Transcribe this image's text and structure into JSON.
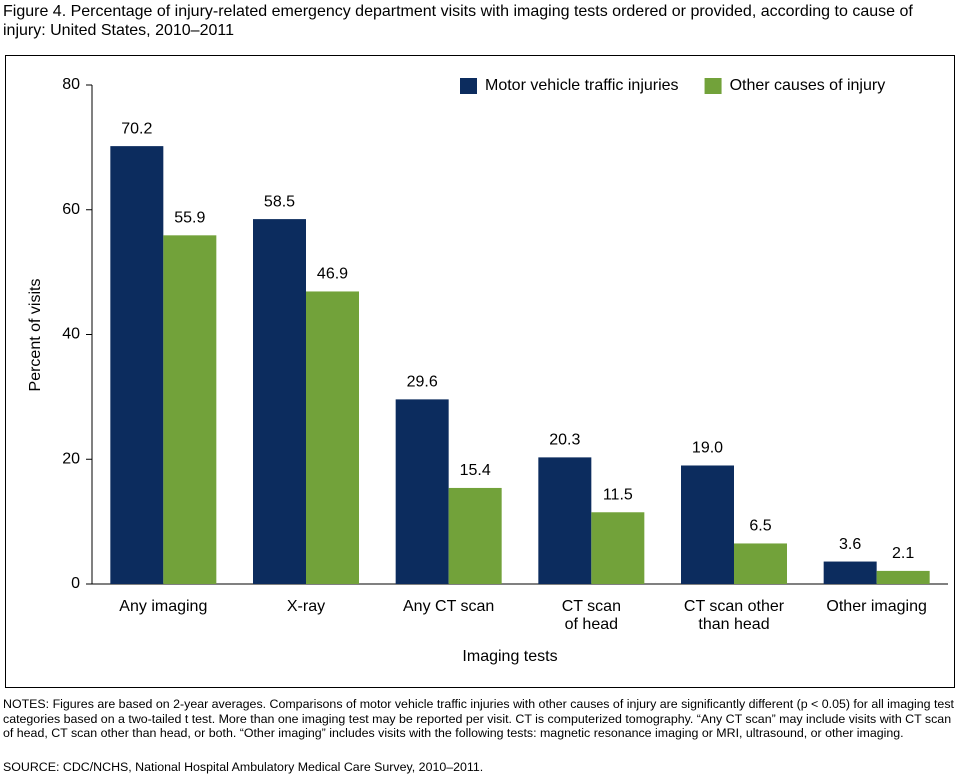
{
  "chart_data": {
    "type": "bar",
    "title": "Figure 4. Percentage of injury-related emergency department visits with imaging tests ordered or provided, according to cause of injury: United States, 2010–2011",
    "categories": [
      "Any imaging",
      "X-ray",
      "Any CT scan",
      "CT scan\nof head",
      "CT scan other\nthan head",
      "Other imaging"
    ],
    "series": [
      {
        "name": "Motor vehicle traffic injuries",
        "color": "#0c2c5e",
        "values": [
          70.2,
          58.5,
          29.6,
          20.3,
          19.0,
          3.6
        ],
        "value_labels": [
          "70.2",
          "58.5",
          "29.6",
          "20.3",
          "19.0",
          "3.6"
        ]
      },
      {
        "name": "Other causes of injury",
        "color": "#72a23a",
        "values": [
          55.9,
          46.9,
          15.4,
          11.5,
          6.5,
          2.1
        ],
        "value_labels": [
          "55.9",
          "46.9",
          "15.4",
          "11.5",
          "6.5",
          "2.1"
        ]
      }
    ],
    "ylim": [
      0,
      80
    ],
    "yticks": [
      0,
      20,
      40,
      60,
      80
    ],
    "xlabel": "Imaging tests",
    "ylabel": "Percent of visits",
    "legend": "upper right",
    "grid": false,
    "notes": "NOTES: Figures are based on 2-year averages. Comparisons of motor vehicle traffic injuries with other causes of injury are significantly different (p < 0.05) for all imaging test categories based on a two-tailed t test. More than one imaging test may be reported per visit. CT is computerized tomography. “Any CT scan” may include visits with CT scan of head, CT scan other than head, or both. “Other imaging” includes visits with the following tests: magnetic resonance imaging or MRI, ultrasound, or other imaging.",
    "source": "SOURCE: CDC/NCHS, National Hospital Ambulatory Medical Care Survey, 2010–2011."
  }
}
